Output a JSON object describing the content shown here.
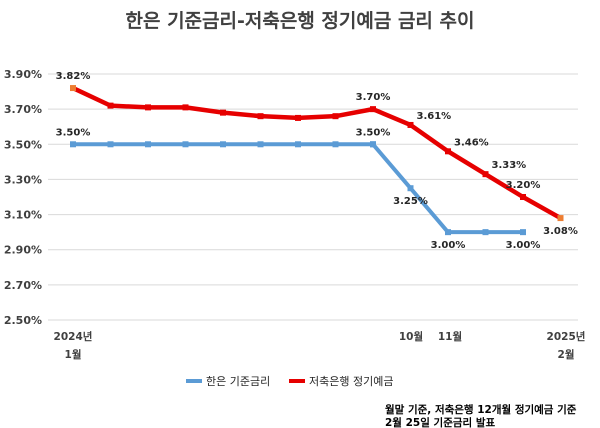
{
  "chart_data": {
    "type": "line",
    "title": "한은 기준금리-저축은행 정기예금 금리 추이",
    "ylim": [
      2.5,
      3.9
    ],
    "y_ticks": [
      "3.90%",
      "3.70%",
      "3.50%",
      "3.30%",
      "3.10%",
      "2.90%",
      "2.70%",
      "2.50%"
    ],
    "y_tick_values": [
      3.9,
      3.7,
      3.5,
      3.3,
      3.1,
      2.9,
      2.7,
      2.5
    ],
    "grid": "horizontal",
    "x_count": 14,
    "x_labels": [
      {
        "index": 0,
        "lines": [
          "2024년",
          "1월"
        ]
      },
      {
        "index": 9,
        "lines": [
          "10월"
        ]
      },
      {
        "index": 10,
        "lines": [
          "11월"
        ]
      },
      {
        "index": 13,
        "lines": [
          "2025년",
          "2월"
        ]
      }
    ],
    "series": [
      {
        "name": "한은 기준금리",
        "color": "#5b9bd5",
        "values": [
          3.5,
          3.5,
          3.5,
          3.5,
          3.5,
          3.5,
          3.5,
          3.5,
          3.5,
          3.5,
          3.25,
          3.0,
          3.0,
          3.0
        ],
        "x_index": [
          0,
          1,
          2,
          3,
          4,
          5,
          6,
          7,
          8,
          8,
          9,
          10,
          11,
          12
        ],
        "labels": [
          {
            "point": 0,
            "text": "3.50%",
            "pos": "above"
          },
          {
            "point": 9,
            "text": "3.50%",
            "pos": "above"
          },
          {
            "point": 10,
            "text": "3.25%",
            "pos": "below"
          },
          {
            "point": 11,
            "text": "3.00%",
            "pos": "below"
          },
          {
            "point": 13,
            "text": "3.00%",
            "pos": "below"
          }
        ]
      },
      {
        "name": "저축은행 정기예금",
        "color": "#e60000",
        "values": [
          3.82,
          3.72,
          3.71,
          3.71,
          3.68,
          3.66,
          3.65,
          3.66,
          3.7,
          3.61,
          3.46,
          3.33,
          3.2,
          3.08
        ],
        "labels": [
          {
            "point": 0,
            "text": "3.82%",
            "pos": "above"
          },
          {
            "point": 8,
            "text": "3.70%",
            "pos": "above"
          },
          {
            "point": 9,
            "text": "3.61%",
            "pos": "right"
          },
          {
            "point": 10,
            "text": "3.46%",
            "pos": "right"
          },
          {
            "point": 11,
            "text": "3.33%",
            "pos": "right"
          },
          {
            "point": 12,
            "text": "3.20%",
            "pos": "above"
          },
          {
            "point": 13,
            "text": "3.08%",
            "pos": "below"
          }
        ],
        "endpoint_color": "#ed7d31"
      }
    ],
    "legend": {
      "placement": "bottom",
      "items": [
        "한은 기준금리",
        "저축은행 정기예금"
      ]
    },
    "notes": [
      "월말 기준, 저축은행 12개월 정기예금 기준",
      "2월 25일 기준금리 발표"
    ]
  }
}
